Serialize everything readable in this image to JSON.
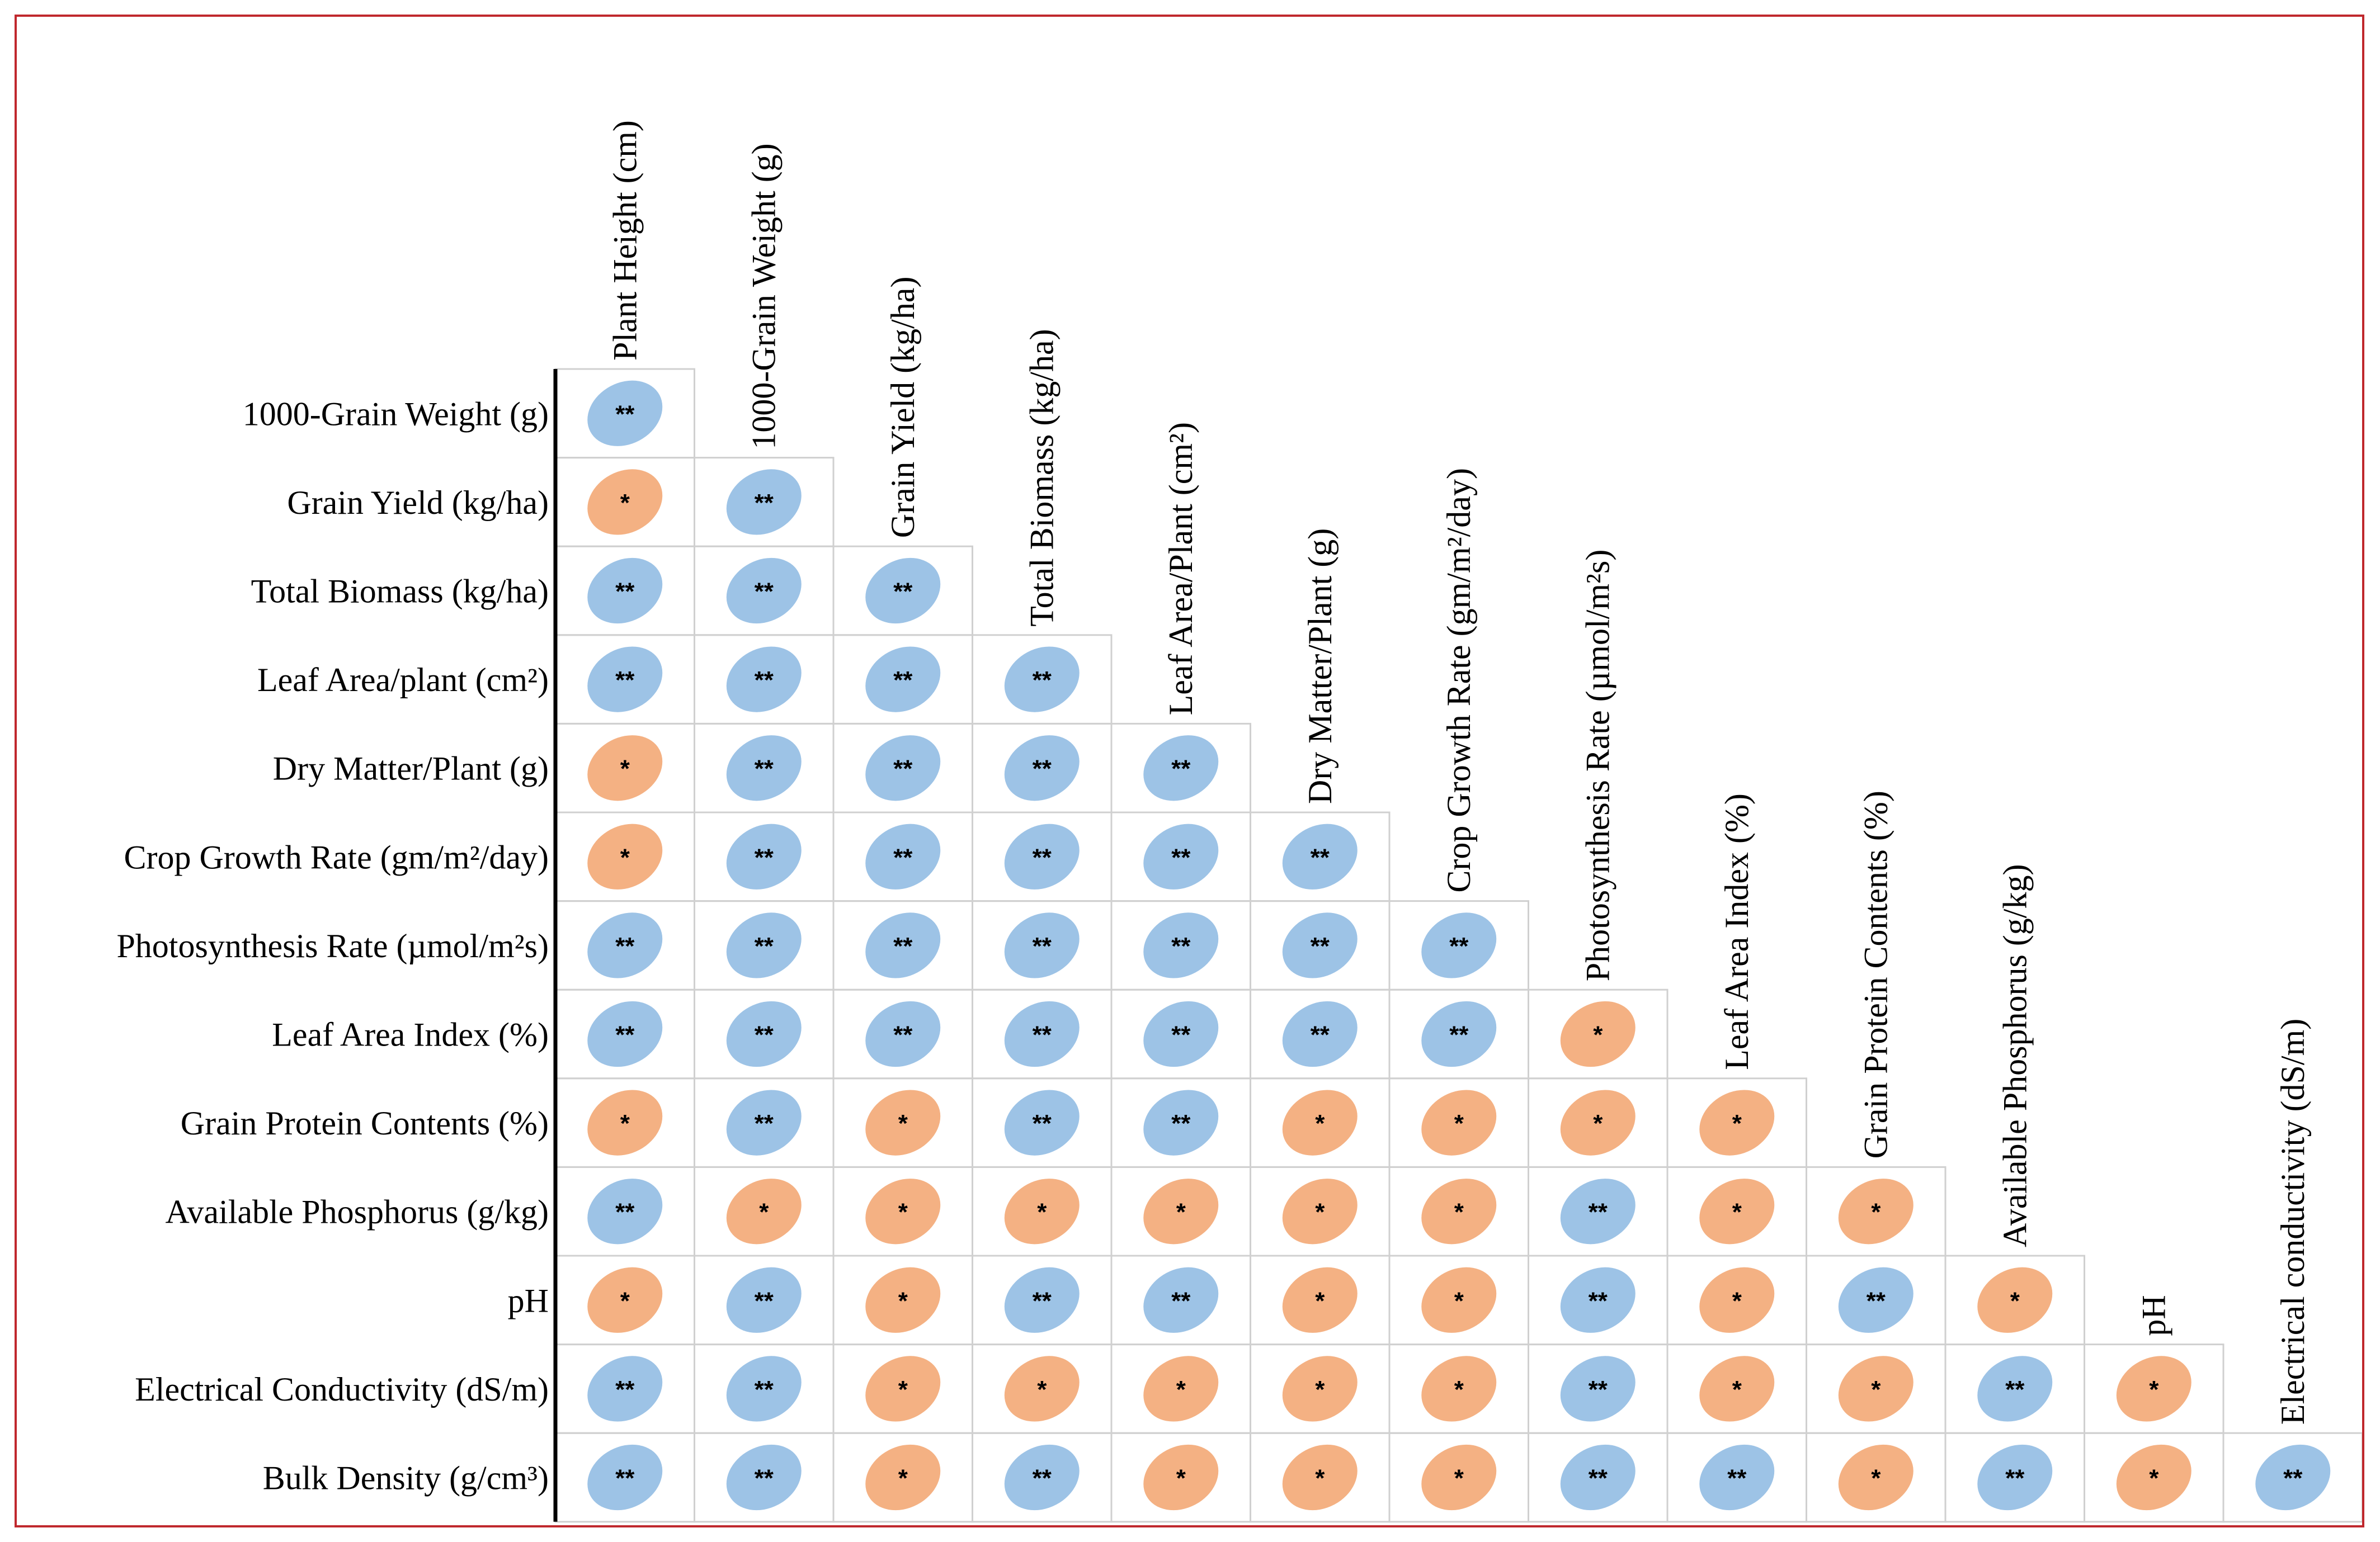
{
  "chart_data": {
    "type": "heatmap",
    "subtype": "lower-triangular correlation matrix",
    "column_labels": [
      "Plant Height (cm)",
      "1000-Grain Weight (g)",
      "Grain Yield (kg/ha)",
      "Total Biomass (kg/ha)",
      "Leaf Area/Plant (cm²)",
      "Dry Matter/Plant (g)",
      "Crop Growth Rate (gm/m²/day)",
      "Photosynthesis Rate (µmol/m²s)",
      "Leaf Area Index (%)",
      "Grain Protein Contents (%)",
      "Available Phosphorus (g/kg)",
      "pH",
      "Electrical conductivity (dS/m)"
    ],
    "row_labels": [
      "1000-Grain Weight (g)",
      "Grain Yield (kg/ha)",
      "Total Biomass (kg/ha)",
      "Leaf Area/plant (cm²)",
      "Dry Matter/Plant (g)",
      "Crop Growth Rate (gm/m²/day)",
      "Photosynthesis Rate (µmol/m²s)",
      "Leaf Area Index (%)",
      "Grain Protein Contents (%)",
      "Available Phosphorus (g/kg)",
      "pH",
      "Electrical Conductivity (dS/m)",
      "Bulk Density (g/cm³)"
    ],
    "significance": [
      [
        "**"
      ],
      [
        "*",
        "**"
      ],
      [
        "**",
        "**",
        "**"
      ],
      [
        "**",
        "**",
        "**",
        "**"
      ],
      [
        "*",
        "**",
        "**",
        "**",
        "**"
      ],
      [
        "*",
        "**",
        "**",
        "**",
        "**",
        "**"
      ],
      [
        "**",
        "**",
        "**",
        "**",
        "**",
        "**",
        "**"
      ],
      [
        "**",
        "**",
        "**",
        "**",
        "**",
        "**",
        "**",
        "*"
      ],
      [
        "*",
        "**",
        "*",
        "**",
        "**",
        "*",
        "*",
        "*",
        "*"
      ],
      [
        "**",
        "*",
        "*",
        "*",
        "*",
        "*",
        "*",
        "**",
        "*",
        "*"
      ],
      [
        "*",
        "**",
        "*",
        "**",
        "**",
        "*",
        "*",
        "**",
        "*",
        "**",
        "*"
      ],
      [
        "**",
        "**",
        "*",
        "*",
        "*",
        "*",
        "*",
        "**",
        "*",
        "*",
        "**",
        "*"
      ],
      [
        "**",
        "**",
        "*",
        "**",
        "*",
        "*",
        "*",
        "**",
        "**",
        "*",
        "**",
        "*",
        "**"
      ]
    ],
    "legend": {
      "**": "blue",
      "*": "orange"
    },
    "colors": {
      "double_star": "#9dc3e6",
      "single_star": "#f4b183",
      "frame": "#c0282d",
      "grid": "#d0d0d0"
    }
  }
}
